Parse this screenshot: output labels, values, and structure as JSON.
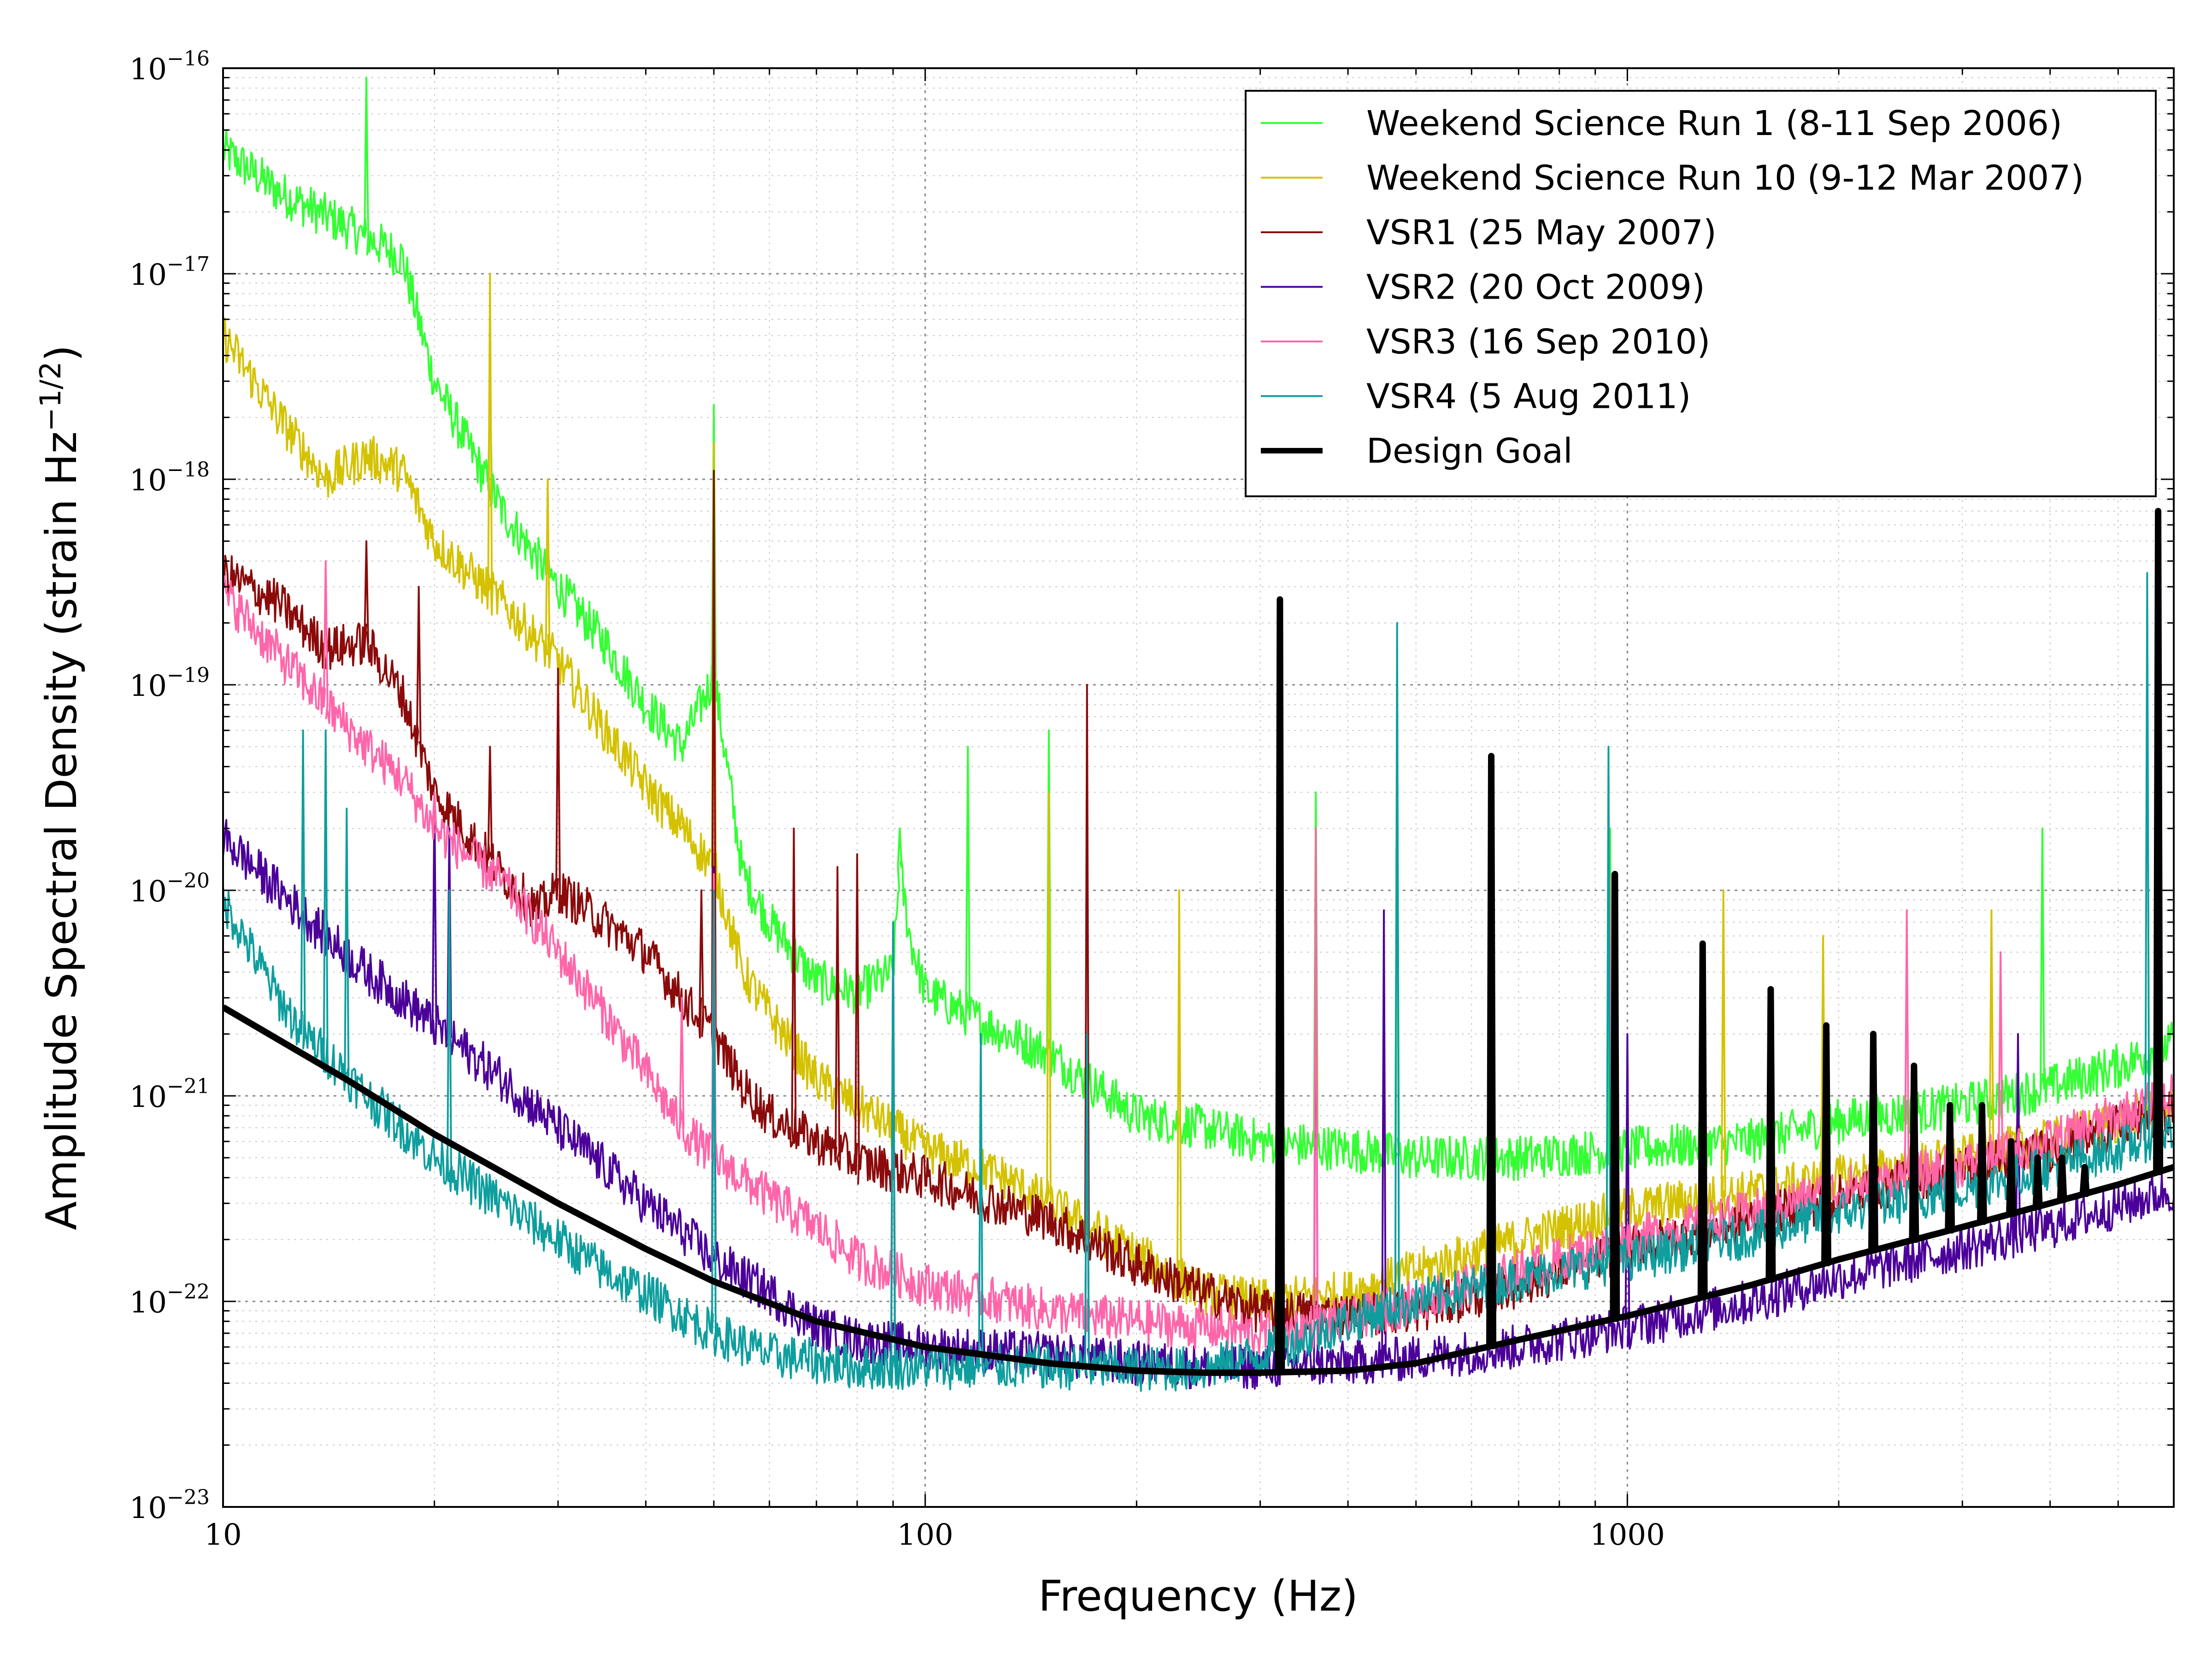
{
  "chart_data": {
    "type": "line",
    "xlabel": "Frequency (Hz)",
    "ylabel_main": "Amplitude Spectral Density (strain Hz",
    "ylabel_exp": "−1/2",
    "ylabel_close": ")",
    "x_scale": "log",
    "y_scale": "log",
    "xlim": [
      10,
      6000
    ],
    "ylim": [
      1e-23,
      1e-16
    ],
    "x_ticks": [
      {
        "value": 10,
        "label": "10"
      },
      {
        "value": 100,
        "label": "100"
      },
      {
        "value": 1000,
        "label": "1000"
      }
    ],
    "y_ticks": [
      {
        "value": 1e-16,
        "base": "10",
        "exp": "−16"
      },
      {
        "value": 1e-17,
        "base": "10",
        "exp": "−17"
      },
      {
        "value": 1e-18,
        "base": "10",
        "exp": "−18"
      },
      {
        "value": 1e-19,
        "base": "10",
        "exp": "−19"
      },
      {
        "value": 1e-20,
        "base": "10",
        "exp": "−20"
      },
      {
        "value": 1e-21,
        "base": "10",
        "exp": "−21"
      },
      {
        "value": 1e-22,
        "base": "10",
        "exp": "−22"
      },
      {
        "value": 1e-23,
        "base": "10",
        "exp": "−23"
      }
    ],
    "grid": true,
    "legend_position": "top-right",
    "series": [
      {
        "name": "Weekend Science Run 1 (8-11 Sep 2006)",
        "color": "#33ff33",
        "lw": 4,
        "points": [
          [
            10,
            4e-17
          ],
          [
            12,
            2.5e-17
          ],
          [
            15,
            1.7e-17
          ],
          [
            18,
            1.2e-17
          ],
          [
            20,
            3e-18
          ],
          [
            25,
            7e-19
          ],
          [
            30,
            3e-19
          ],
          [
            35,
            1.6e-19
          ],
          [
            40,
            8e-20
          ],
          [
            45,
            5e-20
          ],
          [
            50,
            1.1e-19
          ],
          [
            55,
            1.2e-20
          ],
          [
            60,
            7e-21
          ],
          [
            70,
            3.6e-21
          ],
          [
            80,
            3.2e-21
          ],
          [
            90,
            4e-21
          ],
          [
            92,
            1.3e-20
          ],
          [
            95,
            6e-21
          ],
          [
            100,
            3.2e-21
          ],
          [
            120,
            2.3e-21
          ],
          [
            150,
            1.6e-21
          ],
          [
            200,
            8e-22
          ],
          [
            250,
            7e-22
          ],
          [
            300,
            6e-22
          ],
          [
            400,
            5.5e-22
          ],
          [
            500,
            5e-22
          ],
          [
            700,
            5e-22
          ],
          [
            1000,
            5.5e-22
          ],
          [
            1500,
            6e-22
          ],
          [
            2000,
            7.5e-22
          ],
          [
            3000,
            9e-22
          ],
          [
            4000,
            1.1e-21
          ],
          [
            5000,
            1.4e-21
          ],
          [
            6000,
            1.8e-21
          ]
        ],
        "peaks": [
          [
            16,
            9e-17
          ],
          [
            24,
            3e-18
          ],
          [
            50,
            2.3e-18
          ],
          [
            92,
            2e-20
          ],
          [
            115,
            5e-20
          ],
          [
            150,
            6e-20
          ],
          [
            360,
            3e-20
          ],
          [
            470,
            8e-20
          ],
          [
            945,
            2e-20
          ],
          [
            3900,
            2e-20
          ]
        ]
      },
      {
        "name": "Weekend Science Run 10 (9-12 Mar 2007)",
        "color": "#d4c200",
        "lw": 4,
        "points": [
          [
            10,
            5e-18
          ],
          [
            12,
            2e-18
          ],
          [
            14,
            1e-18
          ],
          [
            16,
            1.3e-18
          ],
          [
            18,
            1.1e-18
          ],
          [
            20,
            5e-19
          ],
          [
            25,
            2.5e-19
          ],
          [
            30,
            1.3e-19
          ],
          [
            35,
            6e-20
          ],
          [
            40,
            3.2e-20
          ],
          [
            45,
            2e-20
          ],
          [
            50,
            1.3e-20
          ],
          [
            55,
            4e-21
          ],
          [
            60,
            2.5e-21
          ],
          [
            70,
            1.2e-21
          ],
          [
            80,
            9e-22
          ],
          [
            100,
            5.5e-22
          ],
          [
            130,
            4e-22
          ],
          [
            150,
            3e-22
          ],
          [
            200,
            1.7e-22
          ],
          [
            250,
            1.1e-22
          ],
          [
            300,
            1e-22
          ],
          [
            400,
            1.1e-22
          ],
          [
            500,
            1.4e-22
          ],
          [
            700,
            2e-22
          ],
          [
            1000,
            2.8e-22
          ],
          [
            1500,
            3.4e-22
          ],
          [
            2000,
            4e-22
          ],
          [
            3000,
            5e-22
          ],
          [
            4000,
            6e-22
          ],
          [
            5000,
            7.5e-22
          ],
          [
            6000,
            9e-22
          ]
        ],
        "peaks": [
          [
            24,
            1e-17
          ],
          [
            29,
            1e-18
          ],
          [
            45,
            2.5e-20
          ],
          [
            50,
            1.5e-18
          ],
          [
            150,
            3e-20
          ],
          [
            230,
            1e-20
          ],
          [
            1370,
            1e-20
          ],
          [
            1900,
            6e-21
          ],
          [
            3300,
            8e-21
          ]
        ]
      },
      {
        "name": "VSR1 (25 May 2007)",
        "color": "#8b0a0a",
        "lw": 4,
        "points": [
          [
            10,
            3.5e-19
          ],
          [
            12,
            2.5e-19
          ],
          [
            14,
            1.5e-19
          ],
          [
            16,
            1.6e-19
          ],
          [
            18,
            9e-20
          ],
          [
            20,
            3e-20
          ],
          [
            22,
            2e-20
          ],
          [
            25,
            1.2e-20
          ],
          [
            28,
            8e-21
          ],
          [
            30,
            1e-20
          ],
          [
            35,
            7e-21
          ],
          [
            40,
            5e-21
          ],
          [
            45,
            3e-21
          ],
          [
            50,
            2e-21
          ],
          [
            55,
            1.1e-21
          ],
          [
            60,
            8e-22
          ],
          [
            70,
            6e-22
          ],
          [
            80,
            4.8e-22
          ],
          [
            100,
            4e-22
          ],
          [
            120,
            3.2e-22
          ],
          [
            150,
            2.5e-22
          ],
          [
            200,
            1.5e-22
          ],
          [
            250,
            1.1e-22
          ],
          [
            300,
            9e-23
          ],
          [
            400,
            8.5e-23
          ],
          [
            500,
            9e-23
          ],
          [
            700,
            1.2e-22
          ],
          [
            1000,
            1.8e-22
          ],
          [
            1500,
            2.5e-22
          ],
          [
            2000,
            3.2e-22
          ],
          [
            3000,
            4.5e-22
          ],
          [
            4000,
            5.5e-22
          ],
          [
            5000,
            7e-22
          ],
          [
            6000,
            8.5e-22
          ]
        ],
        "peaks": [
          [
            16,
            5e-19
          ],
          [
            19,
            3e-19
          ],
          [
            24,
            5e-20
          ],
          [
            30,
            1.2e-19
          ],
          [
            48,
            1e-20
          ],
          [
            50,
            1.1e-18
          ],
          [
            65,
            2e-20
          ],
          [
            75,
            1.3e-20
          ],
          [
            80,
            1.5e-20
          ],
          [
            170,
            1e-19
          ]
        ]
      },
      {
        "name": "VSR2 (20 Oct 2009)",
        "color": "#4b0099",
        "lw": 4,
        "points": [
          [
            10,
            1.8e-20
          ],
          [
            12,
            1e-20
          ],
          [
            14,
            6e-21
          ],
          [
            16,
            4e-21
          ],
          [
            18,
            3e-21
          ],
          [
            20,
            2.2e-21
          ],
          [
            25,
            1.2e-21
          ],
          [
            30,
            7e-22
          ],
          [
            35,
            4.5e-22
          ],
          [
            40,
            3e-22
          ],
          [
            45,
            2.2e-22
          ],
          [
            50,
            1.6e-22
          ],
          [
            60,
            1.1e-22
          ],
          [
            70,
            7.5e-23
          ],
          [
            80,
            6.5e-23
          ],
          [
            100,
            6e-23
          ],
          [
            150,
            5.5e-23
          ],
          [
            200,
            5e-23
          ],
          [
            250,
            4.8e-23
          ],
          [
            300,
            4.8e-23
          ],
          [
            400,
            5e-23
          ],
          [
            500,
            5.3e-23
          ],
          [
            700,
            6e-23
          ],
          [
            1000,
            7.5e-23
          ],
          [
            1500,
            1e-22
          ],
          [
            2000,
            1.3e-22
          ],
          [
            3000,
            1.8e-22
          ],
          [
            4000,
            2.3e-22
          ],
          [
            5000,
            2.9e-22
          ],
          [
            6000,
            3.5e-22
          ]
        ],
        "peaks": [
          [
            20,
            3e-20
          ],
          [
            21,
            2e-20
          ],
          [
            50,
            1.3e-20
          ],
          [
            90,
            7e-21
          ],
          [
            170,
            2e-21
          ],
          [
            360,
            1.5e-20
          ],
          [
            450,
            8e-21
          ],
          [
            1000,
            2e-21
          ],
          [
            3600,
            2e-21
          ]
        ]
      },
      {
        "name": "VSR3 (16 Sep 2010)",
        "color": "#ff66aa",
        "lw": 4,
        "points": [
          [
            10,
            2.8e-19
          ],
          [
            12,
            1.4e-19
          ],
          [
            14,
            8e-20
          ],
          [
            16,
            5e-20
          ],
          [
            18,
            3.5e-20
          ],
          [
            20,
            2e-20
          ],
          [
            25,
            1.1e-20
          ],
          [
            30,
            5e-21
          ],
          [
            35,
            2.5e-21
          ],
          [
            40,
            1.3e-21
          ],
          [
            45,
            7e-22
          ],
          [
            50,
            5e-22
          ],
          [
            60,
            3.2e-22
          ],
          [
            70,
            2.3e-22
          ],
          [
            80,
            1.6e-22
          ],
          [
            100,
            1.2e-22
          ],
          [
            150,
            9e-23
          ],
          [
            200,
            8e-23
          ],
          [
            250,
            7.5e-23
          ],
          [
            300,
            7e-23
          ],
          [
            400,
            8e-23
          ],
          [
            500,
            1e-22
          ],
          [
            700,
            1.4e-22
          ],
          [
            1000,
            2e-22
          ],
          [
            1500,
            2.7e-22
          ],
          [
            2000,
            3.5e-22
          ],
          [
            3000,
            4.6e-22
          ],
          [
            4000,
            6e-22
          ],
          [
            5000,
            8e-22
          ],
          [
            6000,
            1e-21
          ]
        ],
        "peaks": [
          [
            14,
            4e-19
          ],
          [
            20,
            3e-20
          ],
          [
            45,
            3e-21
          ],
          [
            50,
            1.2e-20
          ],
          [
            90,
            2e-21
          ],
          [
            360,
            2e-20
          ],
          [
            950,
            1.2e-20
          ],
          [
            2500,
            8e-21
          ],
          [
            3400,
            5e-21
          ]
        ]
      },
      {
        "name": "VSR4 (5 Aug 2011)",
        "color": "#0e9e9e",
        "lw": 4,
        "points": [
          [
            10,
            9e-21
          ],
          [
            11,
            5e-21
          ],
          [
            12,
            3e-21
          ],
          [
            13,
            2e-21
          ],
          [
            14,
            1.6e-21
          ],
          [
            16,
            1e-21
          ],
          [
            18,
            7e-22
          ],
          [
            20,
            5e-22
          ],
          [
            25,
            3e-22
          ],
          [
            30,
            2e-22
          ],
          [
            35,
            1.4e-22
          ],
          [
            40,
            1.1e-22
          ],
          [
            50,
            7e-23
          ],
          [
            60,
            5.5e-23
          ],
          [
            80,
            4.8e-23
          ],
          [
            100,
            4.8e-23
          ],
          [
            150,
            4.8e-23
          ],
          [
            200,
            4.7e-23
          ],
          [
            250,
            4.7e-23
          ],
          [
            300,
            5.5e-23
          ],
          [
            400,
            8e-23
          ],
          [
            500,
            1e-22
          ],
          [
            700,
            1.3e-22
          ],
          [
            1000,
            1.6e-22
          ],
          [
            1500,
            2.1e-22
          ],
          [
            2000,
            2.7e-22
          ],
          [
            3000,
            3.5e-22
          ],
          [
            4000,
            4.5e-22
          ],
          [
            5000,
            5.5e-22
          ],
          [
            6000,
            6.8e-22
          ]
        ],
        "peaks": [
          [
            13,
            6e-20
          ],
          [
            14,
            6e-20
          ],
          [
            15,
            2.5e-20
          ],
          [
            21,
            1e-20
          ],
          [
            50,
            1e-20
          ],
          [
            90,
            7e-21
          ],
          [
            120,
            2e-21
          ],
          [
            170,
            2e-21
          ],
          [
            470,
            2e-19
          ],
          [
            940,
            5e-20
          ],
          [
            5500,
            3.5e-19
          ]
        ]
      },
      {
        "name": "Design Goal",
        "color": "#000000",
        "lw": 14,
        "points": [
          [
            10,
            2.7e-21
          ],
          [
            15,
            1.2e-21
          ],
          [
            20,
            6.5e-22
          ],
          [
            30,
            3e-22
          ],
          [
            40,
            1.8e-22
          ],
          [
            50,
            1.25e-22
          ],
          [
            70,
            8e-23
          ],
          [
            100,
            6e-23
          ],
          [
            150,
            5e-23
          ],
          [
            200,
            4.6e-23
          ],
          [
            250,
            4.5e-23
          ],
          [
            300,
            4.5e-23
          ],
          [
            400,
            4.6e-23
          ],
          [
            500,
            5e-23
          ],
          [
            700,
            6.5e-23
          ],
          [
            1000,
            8.5e-23
          ],
          [
            1500,
            1.2e-22
          ],
          [
            2000,
            1.6e-22
          ],
          [
            3000,
            2.3e-22
          ],
          [
            4000,
            3e-22
          ],
          [
            5000,
            3.7e-22
          ],
          [
            6000,
            4.5e-22
          ]
        ],
        "peaks": [
          [
            320,
            2.6e-19
          ],
          [
            640,
            4.5e-20
          ],
          [
            960,
            1.2e-20
          ],
          [
            1280,
            5.5e-21
          ],
          [
            1600,
            3.3e-21
          ],
          [
            1920,
            2.2e-21
          ],
          [
            2240,
            2e-21
          ],
          [
            2560,
            1.4e-21
          ],
          [
            2880,
            9e-22
          ],
          [
            3200,
            9e-22
          ],
          [
            3520,
            6e-22
          ],
          [
            3840,
            5e-22
          ],
          [
            4160,
            5e-22
          ],
          [
            4480,
            4.5e-22
          ],
          [
            5700,
            7e-19
          ]
        ]
      }
    ]
  }
}
